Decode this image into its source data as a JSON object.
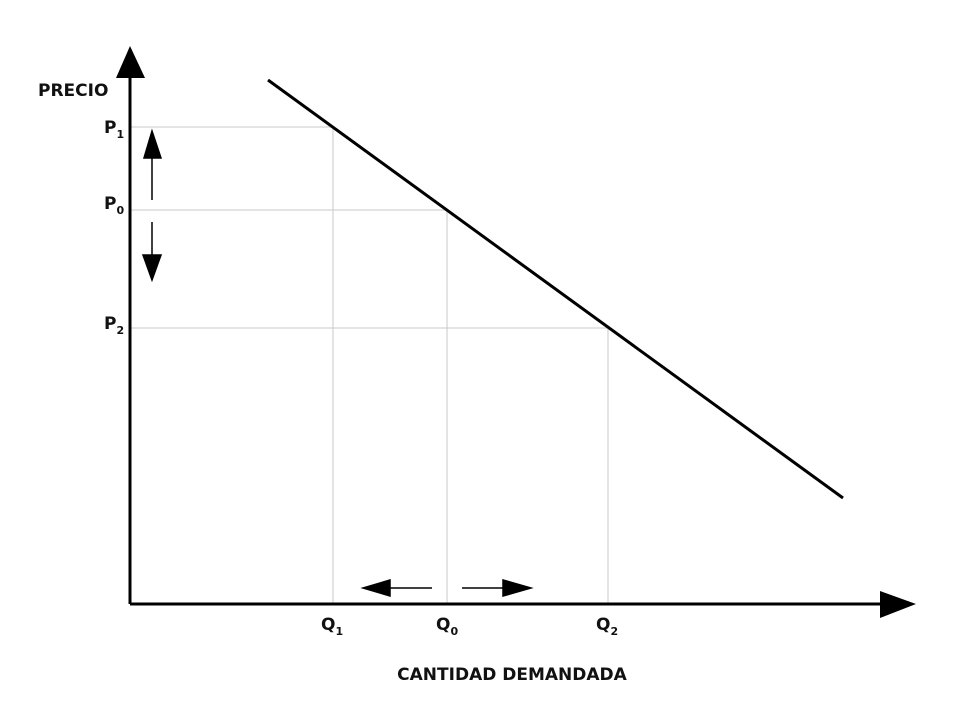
{
  "axes": {
    "y_label": "PRECIO",
    "x_label": "CANTIDAD DEMANDADA"
  },
  "price_levels": [
    {
      "symbol": "P",
      "subscript": "1"
    },
    {
      "symbol": "P",
      "subscript": "0"
    },
    {
      "symbol": "P",
      "subscript": "2"
    }
  ],
  "quantity_levels": [
    {
      "symbol": "Q",
      "subscript": "1"
    },
    {
      "symbol": "Q",
      "subscript": "0"
    },
    {
      "symbol": "Q",
      "subscript": "2"
    }
  ]
}
